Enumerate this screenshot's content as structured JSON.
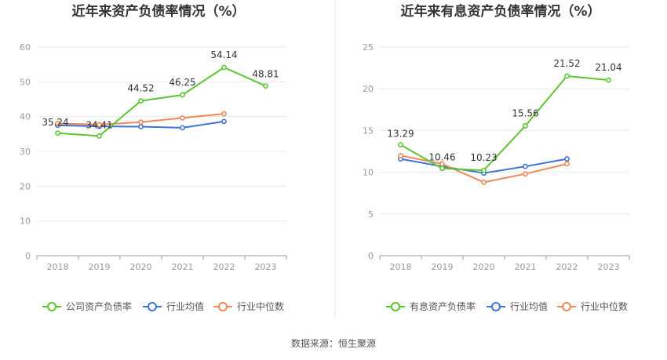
{
  "source_text": "数据来源：恒生聚源",
  "colors": {
    "green": "#5cc531",
    "blue": "#3d72d8",
    "orange": "#f0875a",
    "axis": "#999999",
    "grid": "#e9e9e9",
    "divider": "#e6e6e6"
  },
  "chart_data": [
    {
      "type": "line",
      "title": "近年来资产负债率情况（%）",
      "x": [
        "2018",
        "2019",
        "2020",
        "2021",
        "2022",
        "2023"
      ],
      "ylim": [
        0,
        60
      ],
      "yticks": [
        0,
        10,
        20,
        30,
        40,
        50,
        60
      ],
      "grid": true,
      "legend_position": "bottom",
      "series": [
        {
          "name": "公司资产负债率",
          "color": "#5cc531",
          "values": [
            35.24,
            34.41,
            44.52,
            46.25,
            54.14,
            48.81
          ],
          "labels": [
            "35.24",
            "34.41",
            "44.52",
            "46.25",
            "54.14",
            "48.81"
          ]
        },
        {
          "name": "行业均值",
          "color": "#3d72d8",
          "values": [
            37.5,
            37.2,
            37.1,
            36.8,
            38.6,
            null
          ]
        },
        {
          "name": "行业中位数",
          "color": "#f0875a",
          "values": [
            38.0,
            37.7,
            38.4,
            39.6,
            40.8,
            null
          ]
        }
      ]
    },
    {
      "type": "line",
      "title": "近年来有息资产负债率情况（%）",
      "x": [
        "2018",
        "2019",
        "2020",
        "2021",
        "2022",
        "2023"
      ],
      "ylim": [
        0,
        25
      ],
      "yticks": [
        0,
        5,
        10,
        15,
        20,
        25
      ],
      "grid": true,
      "legend_position": "bottom",
      "series": [
        {
          "name": "有息资产负债率",
          "color": "#5cc531",
          "values": [
            13.29,
            10.46,
            10.23,
            15.56,
            21.52,
            21.04
          ],
          "labels": [
            "13.29",
            "10.46",
            "10.23",
            "15.56",
            "21.52",
            "21.04"
          ]
        },
        {
          "name": "行业均值",
          "color": "#3d72d8",
          "values": [
            11.6,
            10.7,
            9.9,
            10.7,
            11.6,
            null
          ]
        },
        {
          "name": "行业中位数",
          "color": "#f0875a",
          "values": [
            12.0,
            11.0,
            8.8,
            9.8,
            11.0,
            null
          ]
        }
      ]
    }
  ]
}
